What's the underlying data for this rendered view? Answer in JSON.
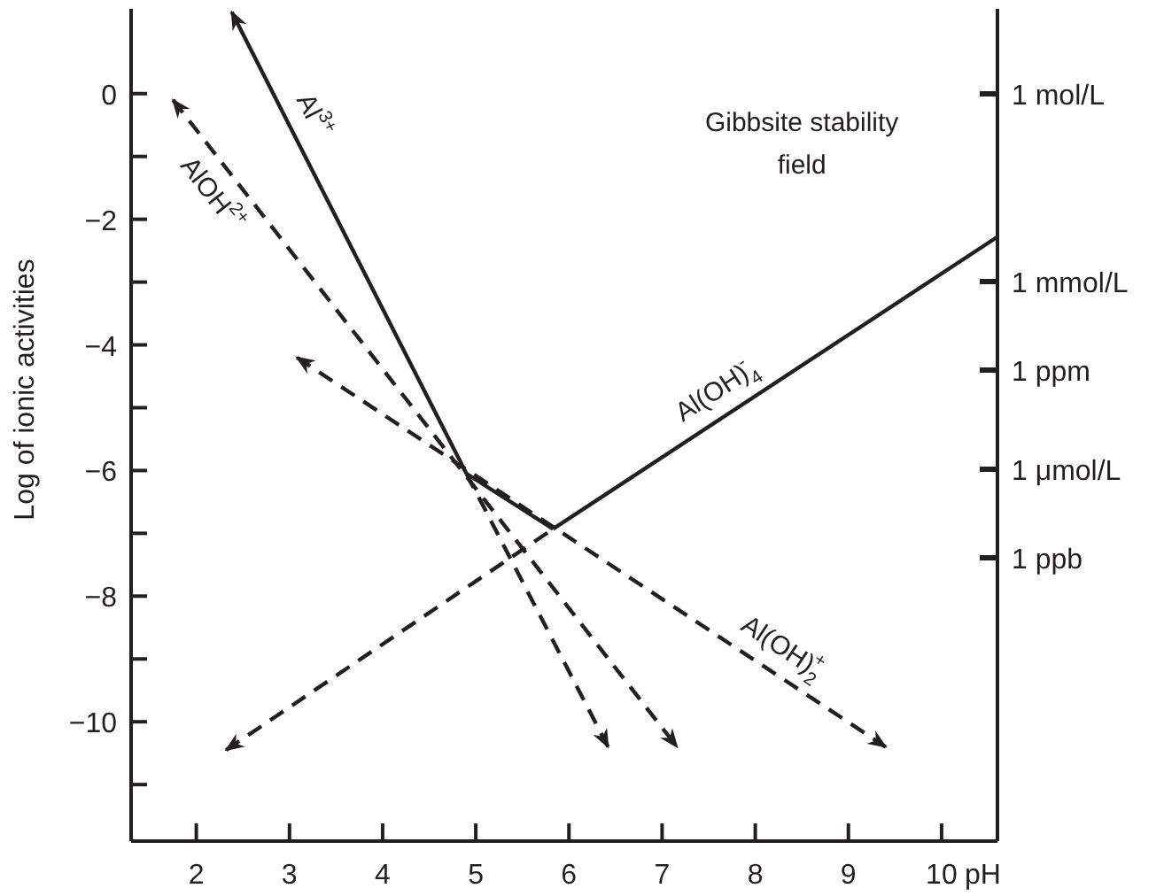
{
  "chart_data": {
    "type": "line",
    "xlabel": "pH",
    "ylabel": "Log of ionic activities",
    "marker": "none",
    "grid": false,
    "legend": false,
    "xlim": [
      1.3,
      10.6
    ],
    "xticks": [
      2,
      3,
      4,
      5,
      6,
      7,
      8,
      9,
      10
    ],
    "ylim": [
      -11.9,
      1.35
    ],
    "yticks": [
      {
        "value": -11,
        "label": null
      },
      {
        "value": -10,
        "label": "−10"
      },
      {
        "value": -9,
        "label": null
      },
      {
        "value": -8,
        "label": "−8"
      },
      {
        "value": -7,
        "label": null
      },
      {
        "value": -6,
        "label": "−6"
      },
      {
        "value": -5,
        "label": null
      },
      {
        "value": -4,
        "label": "−4"
      },
      {
        "value": -3,
        "label": null
      },
      {
        "value": -2,
        "label": "−2"
      },
      {
        "value": -1,
        "label": null
      },
      {
        "value": 0,
        "label": "0"
      }
    ],
    "annotations": [
      "Gibbsite stability field",
      "1 mol/L",
      "1 mmol/L",
      "1 ppm",
      "1 μmol/L",
      "1 ppb"
    ],
    "series": [
      {
        "name": "Al$^{3+}$",
        "color": "#231f20",
        "line_style": "solid",
        "x": [
          2.38,
          4.9
        ],
        "values": [
          1.3,
          -6.05
        ]
      },
      {
        "color": "#231f20",
        "line_style": "dashed",
        "x": [
          4.9,
          6.42
        ],
        "values": [
          -6.05,
          -10.4
        ]
      },
      {
        "name": "AlOH$^{2+}$",
        "color": "#231f20",
        "line_style": "dashed",
        "x": [
          1.75,
          7.16
        ],
        "values": [
          -0.1,
          -10.4
        ]
      },
      {
        "name": "Al(OH)$_{2}$$^{+}$",
        "color": "#231f20",
        "line_style": "dashed",
        "x": [
          3.08,
          9.4
        ],
        "values": [
          -4.2,
          -10.4
        ]
      },
      {
        "color": "#231f20",
        "line_style": "solid",
        "x": [
          4.9,
          5.83
        ],
        "values": [
          -6.05,
          -6.93
        ]
      },
      {
        "name": "Al(OH)$_{4}$$^{-}$",
        "color": "#231f20",
        "line_style": "solid",
        "x": [
          5.83,
          10.6
        ],
        "values": [
          -6.93,
          -2.28
        ]
      },
      {
        "color": "#231f20",
        "line_style": "dashed",
        "x": [
          2.32,
          5.83
        ],
        "values": [
          -10.45,
          -6.93
        ]
      }
    ]
  }
}
